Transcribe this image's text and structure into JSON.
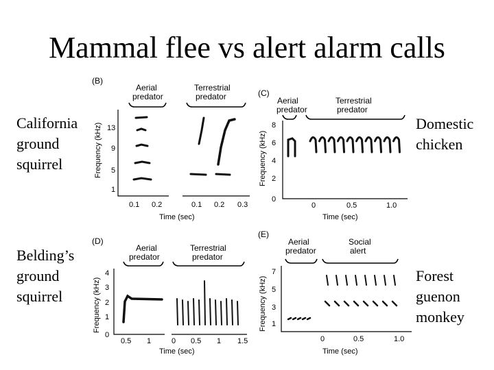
{
  "slide": {
    "title": "Mammal flee vs alert alarm calls"
  },
  "labels": {
    "california": "California ground squirrel",
    "belding": "Belding’s ground squirrel",
    "chicken": "Domestic chicken",
    "monkey": "Forest guenon monkey"
  },
  "panels": {
    "B": {
      "letter": "(B)",
      "annotations": [
        "Aerial predator",
        "Terrestrial predator"
      ],
      "ylabel": "Frequency (kHz)",
      "xlabel": "Time (sec)",
      "yticks": [
        "1",
        "5",
        "9",
        "13"
      ],
      "xticks_left": [
        "0.1",
        "0.2"
      ],
      "xticks_right": [
        "0.1",
        "0.2",
        "0.3"
      ]
    },
    "C": {
      "letter": "(C)",
      "annotations": [
        "Aerial predator",
        "Terrestrial predator"
      ],
      "ylabel": "Frequency (kHz)",
      "xlabel": "Time (sec)",
      "yticks": [
        "0",
        "2",
        "4",
        "6",
        "8"
      ],
      "xticks": [
        "0",
        "0.5",
        "1.0"
      ]
    },
    "D": {
      "letter": "(D)",
      "annotations": [
        "Aerial predator",
        "Terrestrial predator"
      ],
      "ylabel": "Frequency (kHz)",
      "xlabel": "Time (sec)",
      "yticks": [
        "0",
        "1",
        "2",
        "3",
        "4"
      ],
      "xticks_left": [
        "0.5",
        "1"
      ],
      "xticks_right": [
        "0",
        "0.5",
        "1",
        "1.5"
      ]
    },
    "E": {
      "letter": "(E)",
      "annotations": [
        "Aerial predator",
        "Social alert"
      ],
      "ylabel": "Frequency (kHz)",
      "xlabel": "Time (sec)",
      "yticks": [
        "1",
        "3",
        "5",
        "7"
      ],
      "xticks": [
        "0",
        "0.5",
        "1.0"
      ]
    }
  }
}
